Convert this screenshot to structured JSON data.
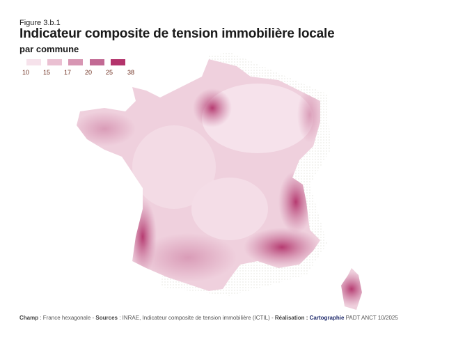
{
  "figure_label": "Figure 3.b.1",
  "title": "Indicateur composite de tension immobilière locale",
  "subtitle": "par commune",
  "legend": {
    "breaks": [
      "10",
      "15",
      "17",
      "20",
      "25",
      "38"
    ],
    "colors": [
      "#f6e2eb",
      "#eac0d2",
      "#d796b3",
      "#c26a94",
      "#b3336b"
    ]
  },
  "footer": {
    "champ_label": "Champ",
    "champ_value": " : France hexagonale - ",
    "sources_label": "Sources",
    "sources_value": " : INRAE, Indicateur composite de tension immobilière (ICTIL) - ",
    "realisation_label": "Réalisation : ",
    "cartographie": "Cartographie",
    "credit": " PADT ANCT 10/2025"
  }
}
